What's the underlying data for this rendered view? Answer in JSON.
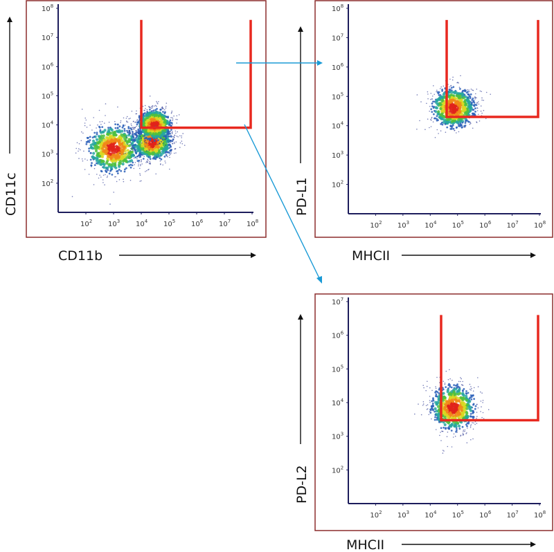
{
  "colors": {
    "frame": "#8b2b2b",
    "axis": "#1c1c5c",
    "gate": "#e8281f",
    "connector": "#1a9ad6",
    "density": [
      "#1c2a8a",
      "#2a5fb8",
      "#26a6a0",
      "#4fbf3f",
      "#d8d823",
      "#f08a18",
      "#e0221b"
    ]
  },
  "chart_data": [
    {
      "id": "cd11b-vs-cd11c",
      "type": "scatter",
      "style": "density-dot-plot",
      "xlabel": "CD11b",
      "ylabel": "CD11c",
      "xscale": "log",
      "yscale": "log",
      "xlim": [
        10,
        100000000
      ],
      "ylim": [
        10,
        100000000
      ],
      "x_ticks": [
        {
          "base": "10",
          "exp": "2"
        },
        {
          "base": "10",
          "exp": "3"
        },
        {
          "base": "10",
          "exp": "4"
        },
        {
          "base": "10",
          "exp": "5"
        },
        {
          "base": "10",
          "exp": "6"
        },
        {
          "base": "10",
          "exp": "7"
        },
        {
          "base": "10",
          "exp": "8"
        }
      ],
      "y_ticks": [
        {
          "base": "10",
          "exp": "2"
        },
        {
          "base": "10",
          "exp": "3"
        },
        {
          "base": "10",
          "exp": "4"
        },
        {
          "base": "10",
          "exp": "5"
        },
        {
          "base": "10",
          "exp": "6"
        },
        {
          "base": "10",
          "exp": "7"
        },
        {
          "base": "10",
          "exp": "8"
        }
      ],
      "populations": [
        {
          "center_x": 1000,
          "center_y": 1500,
          "spread_decades": 0.55,
          "density": "high"
        },
        {
          "center_x": 25000,
          "center_y": 2500,
          "spread_decades": 0.4,
          "density": "high"
        },
        {
          "center_x": 30000,
          "center_y": 10000,
          "spread_decades": 0.35,
          "density": "high"
        }
      ],
      "gate": {
        "x_min": 10000,
        "x_max": 100000000,
        "y_min": 8000,
        "y_max": 40000000
      }
    },
    {
      "id": "mhcii-vs-pdl1",
      "type": "scatter",
      "style": "density-dot-plot",
      "xlabel": "MHCII",
      "ylabel": "PD-L1",
      "xscale": "log",
      "yscale": "log",
      "xlim": [
        10,
        100000000
      ],
      "ylim": [
        10,
        100000000
      ],
      "x_ticks": [
        {
          "base": "10",
          "exp": "2"
        },
        {
          "base": "10",
          "exp": "3"
        },
        {
          "base": "10",
          "exp": "4"
        },
        {
          "base": "10",
          "exp": "5"
        },
        {
          "base": "10",
          "exp": "6"
        },
        {
          "base": "10",
          "exp": "7"
        },
        {
          "base": "10",
          "exp": "8"
        }
      ],
      "y_ticks": [
        {
          "base": "10",
          "exp": "2"
        },
        {
          "base": "10",
          "exp": "3"
        },
        {
          "base": "10",
          "exp": "4"
        },
        {
          "base": "10",
          "exp": "5"
        },
        {
          "base": "10",
          "exp": "6"
        },
        {
          "base": "10",
          "exp": "7"
        },
        {
          "base": "10",
          "exp": "8"
        }
      ],
      "populations": [
        {
          "center_x": 70000,
          "center_y": 40000,
          "spread_decades": 0.45,
          "density": "high"
        }
      ],
      "gate": {
        "x_min": 40000,
        "x_max": 100000000,
        "y_min": 20000,
        "y_max": 40000000
      }
    },
    {
      "id": "mhcii-vs-pdl2",
      "type": "scatter",
      "style": "density-dot-plot",
      "xlabel": "MHCII",
      "ylabel": "PD-L2",
      "xscale": "log",
      "yscale": "log",
      "xlim": [
        10,
        100000000
      ],
      "ylim": [
        10,
        10000000
      ],
      "x_ticks": [
        {
          "base": "10",
          "exp": "2"
        },
        {
          "base": "10",
          "exp": "3"
        },
        {
          "base": "10",
          "exp": "4"
        },
        {
          "base": "10",
          "exp": "5"
        },
        {
          "base": "10",
          "exp": "6"
        },
        {
          "base": "10",
          "exp": "7"
        },
        {
          "base": "10",
          "exp": "8"
        }
      ],
      "y_ticks": [
        {
          "base": "10",
          "exp": "2"
        },
        {
          "base": "10",
          "exp": "3"
        },
        {
          "base": "10",
          "exp": "4"
        },
        {
          "base": "10",
          "exp": "5"
        },
        {
          "base": "10",
          "exp": "6"
        },
        {
          "base": "10",
          "exp": "7"
        }
      ],
      "populations": [
        {
          "center_x": 70000,
          "center_y": 7000,
          "spread_decades": 0.45,
          "density": "high"
        }
      ],
      "gate": {
        "x_min": 25000,
        "x_max": 100000000,
        "y_min": 3000,
        "y_max": 4000000
      }
    }
  ]
}
